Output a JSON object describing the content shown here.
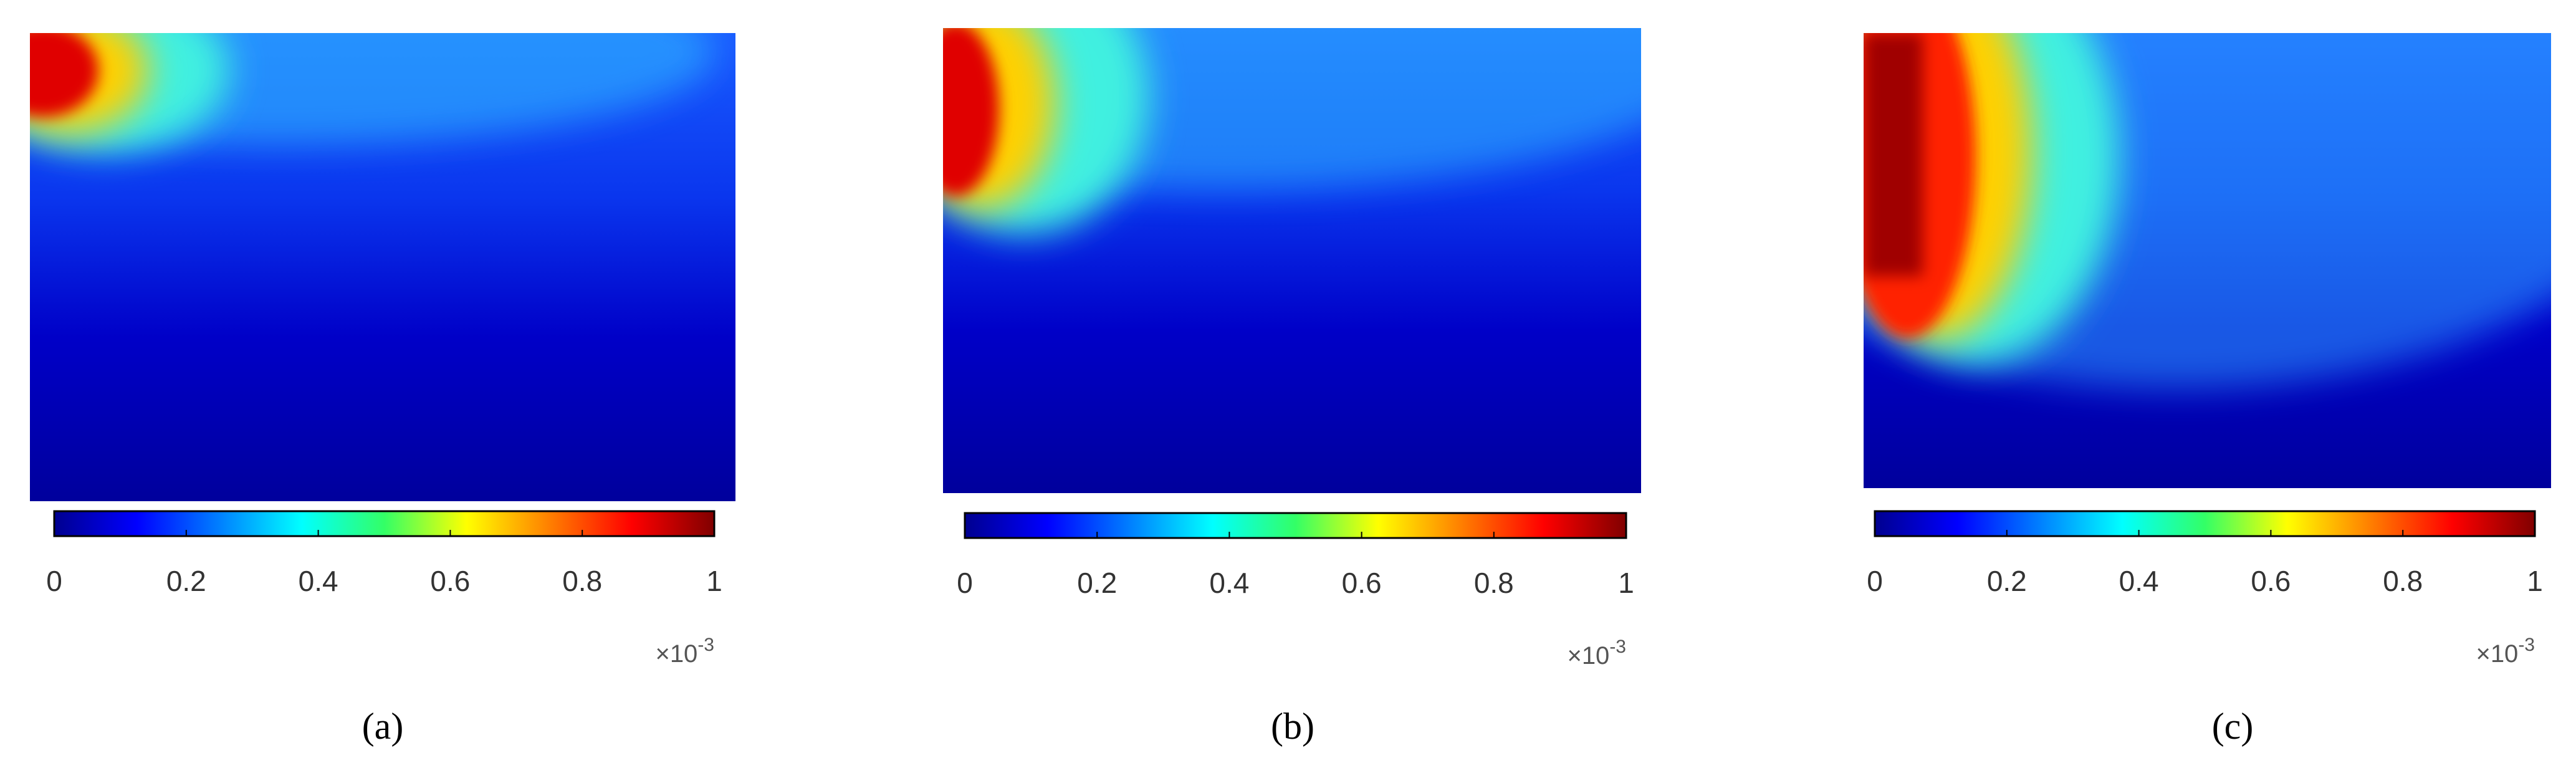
{
  "panels": [
    {
      "label": "(a)",
      "colorbar": {
        "clim": [
          0,
          1
        ],
        "ticks": [
          0,
          0.2,
          0.4,
          0.6,
          0.8,
          1
        ],
        "multiplier": {
          "base": "×10",
          "exponent": "-3"
        }
      }
    },
    {
      "label": "(b)",
      "colorbar": {
        "clim": [
          0,
          1
        ],
        "ticks": [
          0,
          0.2,
          0.4,
          0.6,
          0.8,
          1
        ],
        "multiplier": {
          "base": "×10",
          "exponent": "-3"
        }
      }
    },
    {
      "label": "(c)",
      "colorbar": {
        "clim": [
          0,
          1
        ],
        "ticks": [
          0,
          0.2,
          0.4,
          0.6,
          0.8,
          1
        ],
        "multiplier": {
          "base": "×10",
          "exponent": "-3"
        }
      }
    }
  ]
}
